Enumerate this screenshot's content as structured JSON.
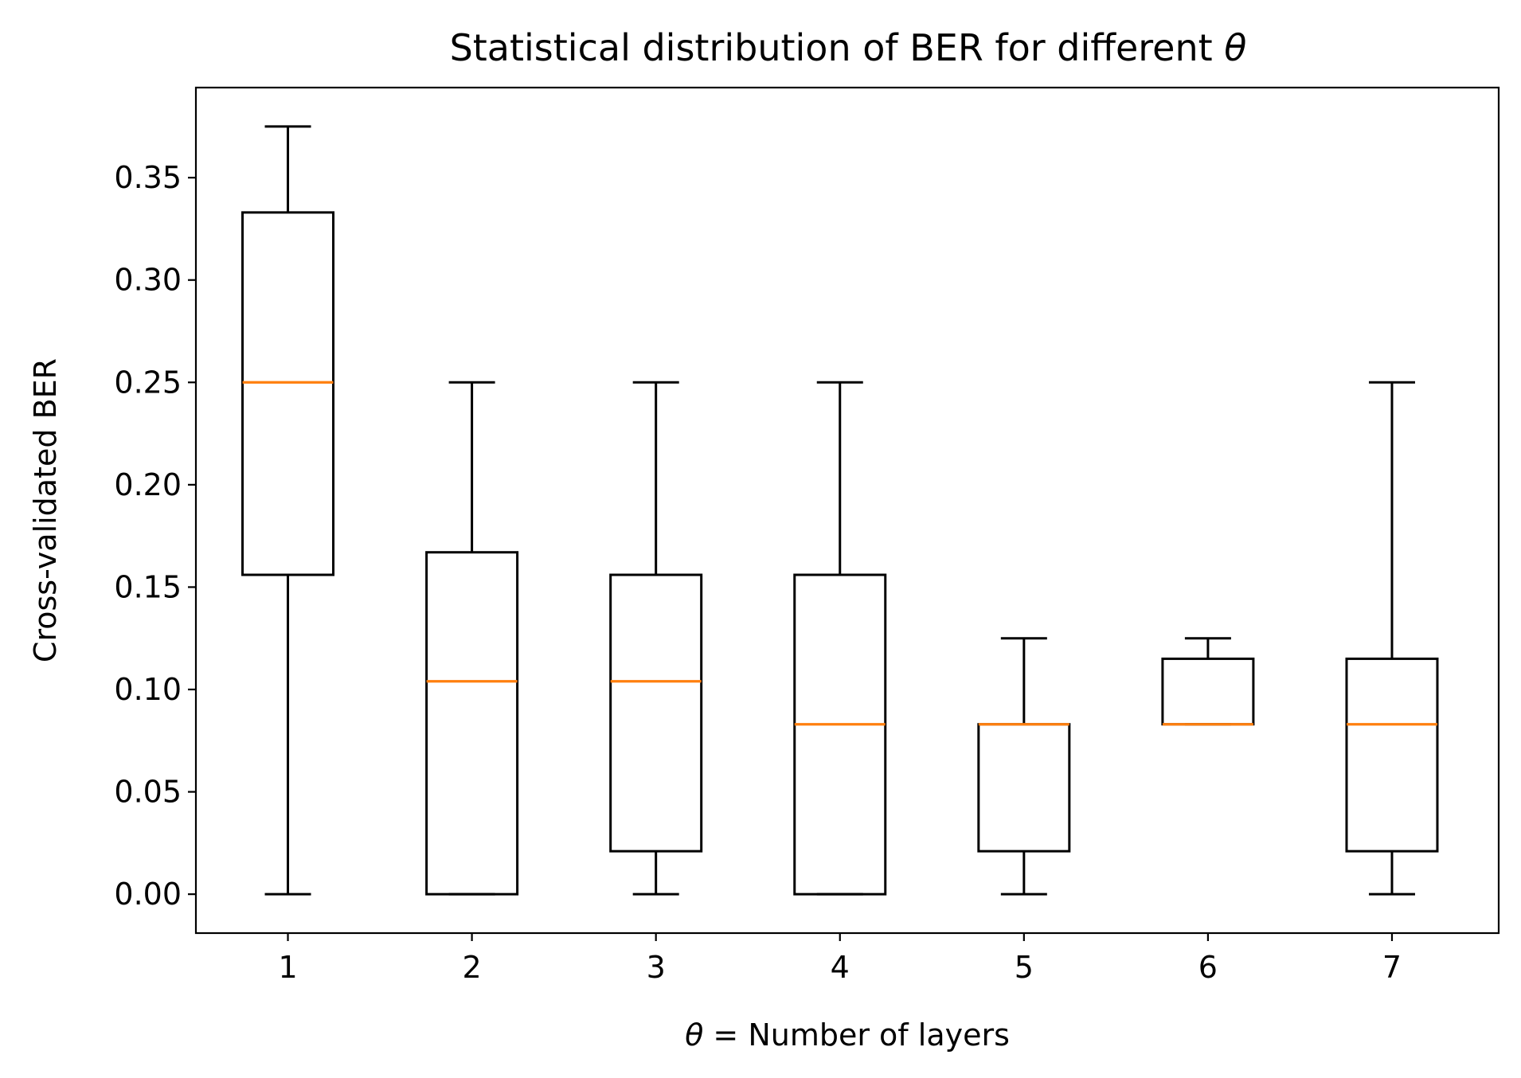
{
  "chart_data": {
    "type": "box",
    "title_prefix": "Statistical distribution of BER for different ",
    "title_symbol": "θ",
    "xlabel_symbol": "θ",
    "xlabel_rest": " = Number of layers",
    "ylabel": "Cross-validated BER",
    "ylim": [
      -0.019,
      0.394
    ],
    "xlim": [
      0.5,
      7.58
    ],
    "yticks": [
      0.0,
      0.05,
      0.1,
      0.15,
      0.2,
      0.25,
      0.3,
      0.35
    ],
    "ytick_labels": [
      "0.00",
      "0.05",
      "0.10",
      "0.15",
      "0.20",
      "0.25",
      "0.30",
      "0.35"
    ],
    "categories": [
      "1",
      "2",
      "3",
      "4",
      "5",
      "6",
      "7"
    ],
    "boxes": [
      {
        "x": 1,
        "whislo": 0.0,
        "q1": 0.156,
        "med": 0.25,
        "q3": 0.333,
        "whishi": 0.375
      },
      {
        "x": 2,
        "whislo": 0.0,
        "q1": 0.0,
        "med": 0.104,
        "q3": 0.167,
        "whishi": 0.25
      },
      {
        "x": 3,
        "whislo": 0.0,
        "q1": 0.021,
        "med": 0.104,
        "q3": 0.156,
        "whishi": 0.25
      },
      {
        "x": 4,
        "whislo": 0.0,
        "q1": 0.0,
        "med": 0.083,
        "q3": 0.156,
        "whishi": 0.25
      },
      {
        "x": 5,
        "whislo": 0.0,
        "q1": 0.021,
        "med": 0.083,
        "q3": 0.083,
        "whishi": 0.125
      },
      {
        "x": 6,
        "whislo": 0.083,
        "q1": 0.083,
        "med": 0.083,
        "q3": 0.115,
        "whishi": 0.125
      },
      {
        "x": 7,
        "whislo": 0.0,
        "q1": 0.021,
        "med": 0.083,
        "q3": 0.115,
        "whishi": 0.25
      }
    ],
    "median_color": "#ff7f0e",
    "box_color": "#000000",
    "grid": false,
    "legend": "none"
  }
}
